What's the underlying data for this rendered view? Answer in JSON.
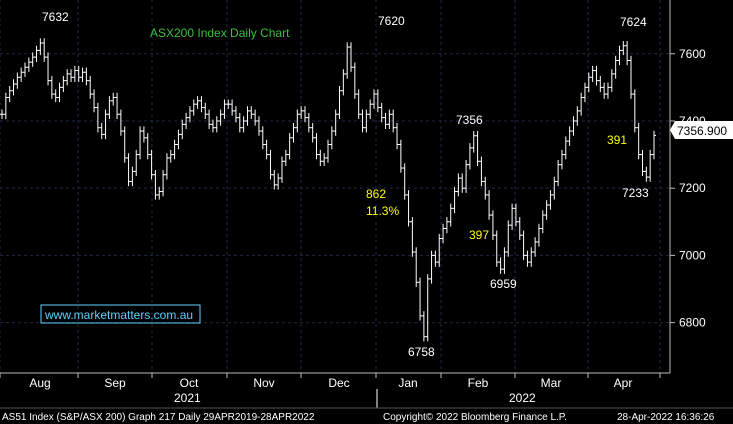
{
  "chart_data": {
    "type": "line",
    "title": "ASX200 Index Daily Chart",
    "watermark": "www.marketmatters.com.au",
    "ylim": [
      6650,
      7760
    ],
    "y_ticks": [
      "6800",
      "7000",
      "7200",
      "7400",
      "7600"
    ],
    "x_month_labels": [
      "Aug",
      "Sep",
      "Oct",
      "Nov",
      "Dec",
      "Jan",
      "Feb",
      "Mar",
      "Apr"
    ],
    "year_labels": [
      "2021",
      "2022"
    ],
    "last_value": "7356.900",
    "colors": {
      "price": "#ffffff",
      "background": "#000000",
      "title": "#3cbf3c",
      "annotation": "#ffff00",
      "grid": "#1e2a44"
    },
    "grid": true,
    "series": [
      {
        "values": [
          7420,
          7470,
          7490,
          7510,
          7530,
          7545,
          7560,
          7575,
          7590,
          7610,
          7632,
          7590,
          7520,
          7480,
          7470,
          7500,
          7520,
          7540,
          7530,
          7550,
          7530,
          7545,
          7520,
          7480,
          7440,
          7380,
          7360,
          7420,
          7460,
          7470,
          7420,
          7370,
          7290,
          7220,
          7250,
          7300,
          7370,
          7350,
          7300,
          7240,
          7180,
          7190,
          7240,
          7290,
          7300,
          7330,
          7360,
          7390,
          7410,
          7430,
          7450,
          7460,
          7440,
          7420,
          7390,
          7380,
          7400,
          7420,
          7450,
          7450,
          7430,
          7410,
          7380,
          7400,
          7430,
          7420,
          7400,
          7370,
          7330,
          7300,
          7240,
          7210,
          7230,
          7280,
          7300,
          7350,
          7380,
          7420,
          7430,
          7410,
          7380,
          7350,
          7300,
          7280,
          7290,
          7330,
          7370,
          7420,
          7490,
          7540,
          7620,
          7560,
          7480,
          7420,
          7380,
          7420,
          7450,
          7480,
          7440,
          7410,
          7390,
          7420,
          7380,
          7330,
          7260,
          7180,
          7100,
          7010,
          6920,
          6820,
          6758,
          6930,
          7000,
          6980,
          7050,
          7080,
          7100,
          7140,
          7190,
          7230,
          7200,
          7270,
          7320,
          7356,
          7280,
          7220,
          7180,
          7120,
          7060,
          6980,
          6959,
          7010,
          7090,
          7140,
          7100,
          7060,
          7000,
          6980,
          7010,
          7040,
          7080,
          7120,
          7150,
          7180,
          7220,
          7270,
          7300,
          7340,
          7370,
          7400,
          7430,
          7470,
          7500,
          7530,
          7550,
          7520,
          7500,
          7480,
          7500,
          7540,
          7580,
          7610,
          7624,
          7580,
          7480,
          7380,
          7300,
          7250,
          7233,
          7300,
          7356.9
        ]
      }
    ],
    "annotations": {
      "peak_aug": "7632",
      "peak_dec": "7620",
      "peak_apr": "7624",
      "peak_feb": "7356",
      "low_jan": "6758",
      "low_feb": "6959",
      "low_apr": "7233",
      "fall_points": "862",
      "fall_pct": "11.3%",
      "rally_points": "397",
      "drop_points": "391"
    }
  },
  "footer": {
    "left": "AS51 Index (S&P/ASX 200) Graph 217  Daily 29APR2019-28APR2022",
    "center": "Copyright© 2022 Bloomberg Finance L.P.",
    "right": "28-Apr-2022 16:36:26"
  }
}
